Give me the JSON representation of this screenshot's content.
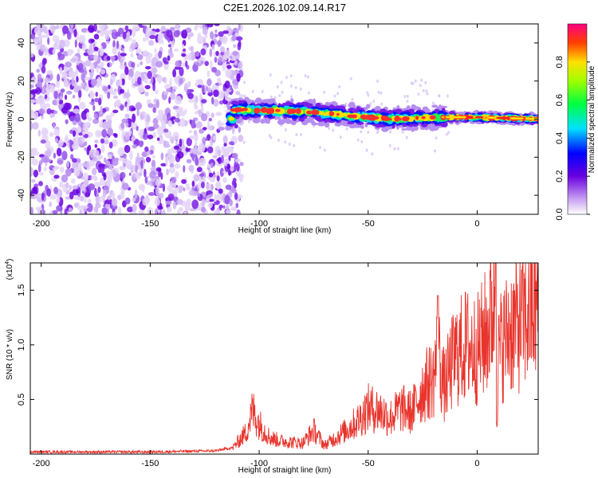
{
  "title": "C2E1.2026.102.09.14.R17",
  "chart_data": [
    {
      "type": "heatmap",
      "name": "spectrogram",
      "xlabel": "Height of straight line (km)",
      "ylabel": "Frequency (Hz)",
      "xlim": [
        -205,
        28
      ],
      "ylim": [
        -50,
        50
      ],
      "xticks": [
        -200,
        -150,
        -100,
        -50,
        0
      ],
      "yticks": [
        -40,
        -20,
        0,
        20,
        40
      ],
      "xtick_labels": [
        "-200",
        "-150",
        "-100",
        "-50",
        "0"
      ],
      "ytick_labels": [
        "-40",
        "-20",
        "0",
        "20",
        "40"
      ],
      "colorbar": {
        "label": "Normalized spectral amplitude",
        "range": [
          0,
          1
        ],
        "ticks": [
          0.0,
          0.2,
          0.4,
          0.6,
          0.8
        ],
        "tick_labels": [
          "0.0",
          "0.2",
          "0.4",
          "0.6",
          "0.8"
        ]
      },
      "ridge": {
        "description_points_km": [
          -112,
          -80,
          -60,
          -40,
          -20,
          0,
          28
        ],
        "center_hz": [
          5,
          4,
          2,
          0,
          1,
          1,
          0
        ]
      },
      "noise_region_km": [
        -205,
        -112
      ]
    },
    {
      "type": "line",
      "name": "snr",
      "xlabel": "Height of straight line (km)",
      "ylabel": "SNR (10 * v/v)",
      "scale_label": "(x10",
      "scale_exponent": "4",
      "xlim": [
        -205,
        28
      ],
      "ylim": [
        0,
        1.75
      ],
      "xticks": [
        -200,
        -150,
        -100,
        -50,
        0
      ],
      "yticks": [
        0.5,
        1.0,
        1.5
      ],
      "xtick_labels": [
        "-200",
        "-150",
        "-100",
        "-50",
        "0"
      ],
      "ytick_labels": [
        "0.5",
        "1.0",
        "1.5"
      ],
      "series": [
        {
          "name": "SNR",
          "color": "#e8342c",
          "x": [
            -205,
            -180,
            -150,
            -120,
            -112,
            -106,
            -103,
            -100,
            -95,
            -90,
            -80,
            -75,
            -70,
            -60,
            -55,
            -50,
            -45,
            -40,
            -35,
            -30,
            -25,
            -20,
            -18,
            -15,
            -13,
            -10,
            -5,
            0,
            5,
            8,
            9,
            10,
            15,
            20,
            25,
            28
          ],
          "values": [
            0.02,
            0.02,
            0.02,
            0.03,
            0.06,
            0.2,
            0.4,
            0.28,
            0.15,
            0.12,
            0.1,
            0.22,
            0.08,
            0.22,
            0.3,
            0.42,
            0.4,
            0.33,
            0.42,
            0.38,
            0.6,
            0.7,
            0.95,
            0.6,
            0.75,
            0.9,
            1.0,
            0.95,
            1.15,
            1.45,
            0.4,
            0.95,
            1.15,
            1.2,
            1.3,
            1.35
          ]
        }
      ]
    }
  ]
}
